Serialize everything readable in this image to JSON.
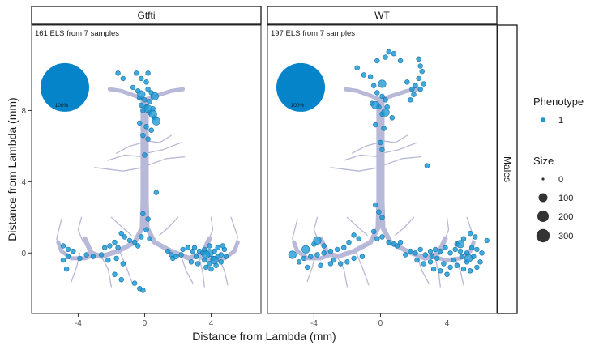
{
  "chart_data": {
    "type": "scatter",
    "xlabel": "Distance from Lambda (mm)",
    "ylabel": "Distance from Lambda (mm)",
    "xlim": [
      -6.8,
      7.0
    ],
    "ylim": [
      -3.4,
      12.8
    ],
    "x_ticks": [
      -4,
      0,
      4
    ],
    "x_tick_labels": [
      "-4",
      "0",
      "4"
    ],
    "y_ticks": [
      0,
      4,
      8
    ],
    "y_tick_labels": [
      "0",
      "4",
      "8"
    ],
    "row_strip": "Males",
    "panels": [
      {
        "strip": "Gtfti",
        "annotation": "161 ELS from 7 samples",
        "pie": {
          "center": [
            -4.8,
            9.3
          ],
          "percent_label": "100%",
          "value": 100
        },
        "points": [
          [
            -1.6,
            10.1
          ],
          [
            -1.3,
            9.8
          ],
          [
            -0.5,
            10.1
          ],
          [
            0.2,
            10.1
          ],
          [
            -0.2,
            9.8
          ],
          [
            0.1,
            9.6
          ],
          [
            -0.7,
            9.3
          ],
          [
            -0.4,
            9.1
          ],
          [
            0.2,
            9.2
          ],
          [
            0.4,
            9.0
          ],
          [
            -0.3,
            8.7
          ],
          [
            0.0,
            8.6
          ],
          [
            0.3,
            8.5
          ],
          [
            -0.2,
            8.3
          ],
          [
            0.1,
            8.2
          ],
          [
            0.5,
            8.1
          ],
          [
            -0.1,
            8.0
          ],
          [
            0.3,
            7.9
          ],
          [
            0.6,
            7.6
          ],
          [
            -0.3,
            7.3
          ],
          [
            0.1,
            7.1
          ],
          [
            0.4,
            6.9
          ],
          [
            -0.1,
            6.6
          ],
          [
            0.2,
            6.4
          ],
          [
            0.0,
            5.5
          ],
          [
            0.7,
            3.4
          ],
          [
            -0.1,
            2.2
          ],
          [
            0.2,
            1.9
          ],
          [
            0.1,
            1.3
          ],
          [
            -0.2,
            0.9
          ],
          [
            0.3,
            0.8
          ],
          [
            -1.4,
            1.1
          ],
          [
            -1.2,
            0.9
          ],
          [
            -0.9,
            0.7
          ],
          [
            -0.6,
            0.6
          ],
          [
            -0.4,
            0.4
          ],
          [
            -1.8,
            0.6
          ],
          [
            -2.1,
            0.4
          ],
          [
            -2.4,
            0.3
          ],
          [
            -1.6,
            0.3
          ],
          [
            -4.9,
            0.4
          ],
          [
            -4.6,
            0.2
          ],
          [
            -4.3,
            0.1
          ],
          [
            -4.6,
            -0.2
          ],
          [
            -4.9,
            -0.4
          ],
          [
            -4.7,
            -0.9
          ],
          [
            -3.9,
            -0.3
          ],
          [
            -3.5,
            -0.1
          ],
          [
            -3.1,
            -0.2
          ],
          [
            -2.6,
            -0.1
          ],
          [
            -2.2,
            -0.4
          ],
          [
            -1.7,
            -0.3
          ],
          [
            -1.3,
            -0.6
          ],
          [
            -1.8,
            -1.2
          ],
          [
            -1.4,
            -1.5
          ],
          [
            -0.6,
            -1.7
          ],
          [
            -0.3,
            -2.0
          ],
          [
            -0.1,
            -2.1
          ],
          [
            1.4,
            0.1
          ],
          [
            1.6,
            -0.1
          ],
          [
            1.7,
            -0.3
          ],
          [
            1.9,
            -0.2
          ],
          [
            2.3,
            0.2
          ],
          [
            2.6,
            0.3
          ],
          [
            2.9,
            0.1
          ],
          [
            3.1,
            -0.2
          ],
          [
            3.3,
            0.1
          ],
          [
            3.6,
            0.2
          ],
          [
            3.9,
            0.4
          ],
          [
            4.2,
            0.1
          ],
          [
            4.4,
            0.3
          ],
          [
            4.6,
            -0.1
          ],
          [
            4.8,
            0.2
          ],
          [
            3.6,
            -0.4
          ],
          [
            3.9,
            -0.6
          ],
          [
            4.3,
            -0.7
          ],
          [
            4.0,
            -0.9
          ],
          [
            3.7,
            -0.8
          ],
          [
            4.6,
            -0.5
          ],
          [
            4.9,
            -0.2
          ],
          [
            2.8,
            -0.5
          ],
          [
            3.2,
            -0.6
          ],
          [
            4.1,
            -0.3
          ],
          [
            4.4,
            -0.2
          ],
          [
            3.5,
            0.0
          ],
          [
            2.2,
            -0.1
          ],
          [
            4.7,
            0.4
          ],
          [
            3.0,
            0.3
          ]
        ],
        "big_points": [
          [
            0.6,
            8.8
          ],
          [
            0.2,
            8.1
          ],
          [
            0.5,
            7.8
          ],
          [
            0.7,
            7.4
          ],
          [
            -0.2,
            8.9
          ],
          [
            3.9,
            0.0
          ],
          [
            4.2,
            -0.4
          ],
          [
            3.7,
            -0.1
          ]
        ]
      },
      {
        "strip": "WT",
        "annotation": "197 ELS from 7 samples",
        "pie": {
          "center": [
            -4.8,
            9.3
          ],
          "percent_label": "100%",
          "value": 100
        },
        "points": [
          [
            0.5,
            11.3
          ],
          [
            0.8,
            11.2
          ],
          [
            0.3,
            11.0
          ],
          [
            1.2,
            10.8
          ],
          [
            -0.2,
            10.8
          ],
          [
            2.3,
            10.9
          ],
          [
            2.4,
            10.5
          ],
          [
            2.5,
            10.2
          ],
          [
            2.3,
            9.8
          ],
          [
            2.1,
            9.4
          ],
          [
            2.4,
            9.2
          ],
          [
            2.6,
            9.5
          ],
          [
            1.6,
            9.6
          ],
          [
            1.9,
            9.2
          ],
          [
            2.0,
            8.9
          ],
          [
            1.8,
            8.6
          ],
          [
            -1.4,
            10.4
          ],
          [
            -1.0,
            10.0
          ],
          [
            -0.6,
            9.9
          ],
          [
            -0.4,
            9.4
          ],
          [
            -0.2,
            9.0
          ],
          [
            0.1,
            8.8
          ],
          [
            0.3,
            8.6
          ],
          [
            -0.5,
            8.4
          ],
          [
            -0.1,
            8.2
          ],
          [
            0.4,
            8.2
          ],
          [
            0.1,
            7.8
          ],
          [
            0.7,
            7.6
          ],
          [
            -0.3,
            7.2
          ],
          [
            0.2,
            7.0
          ],
          [
            0.0,
            6.2
          ],
          [
            0.1,
            5.8
          ],
          [
            2.8,
            4.9
          ],
          [
            -0.3,
            2.7
          ],
          [
            -0.1,
            2.3
          ],
          [
            0.1,
            2.0
          ],
          [
            -0.4,
            1.2
          ],
          [
            -0.2,
            0.8
          ],
          [
            0.1,
            0.9
          ],
          [
            0.5,
            0.6
          ],
          [
            0.8,
            0.5
          ],
          [
            1.2,
            0.6
          ],
          [
            -1.6,
            1.0
          ],
          [
            -1.3,
            0.8
          ],
          [
            -1.9,
            0.6
          ],
          [
            -2.2,
            0.3
          ],
          [
            -2.6,
            0.2
          ],
          [
            -3.0,
            0.1
          ],
          [
            -3.4,
            0.0
          ],
          [
            -3.8,
            -0.1
          ],
          [
            -4.2,
            -0.2
          ],
          [
            -4.6,
            -0.3
          ],
          [
            -4.9,
            -0.5
          ],
          [
            -4.0,
            0.5
          ],
          [
            -3.4,
            0.4
          ],
          [
            -2.8,
            -0.4
          ],
          [
            -2.4,
            -0.6
          ],
          [
            -2.0,
            -0.5
          ],
          [
            -1.6,
            -0.3
          ],
          [
            -1.1,
            -0.2
          ],
          [
            -4.4,
            -0.8
          ],
          [
            -3.6,
            -0.7
          ],
          [
            -3.0,
            -0.6
          ],
          [
            1.5,
            -0.1
          ],
          [
            1.8,
            0.1
          ],
          [
            2.1,
            0.0
          ],
          [
            2.4,
            0.2
          ],
          [
            2.7,
            -0.1
          ],
          [
            3.0,
            0.1
          ],
          [
            3.3,
            0.2
          ],
          [
            3.6,
            0.1
          ],
          [
            3.9,
            0.3
          ],
          [
            4.2,
            0.0
          ],
          [
            4.5,
            0.2
          ],
          [
            4.8,
            0.1
          ],
          [
            5.2,
            0.0
          ],
          [
            5.5,
            0.3
          ],
          [
            5.8,
            0.2
          ],
          [
            6.1,
            0.0
          ],
          [
            6.4,
            0.7
          ],
          [
            5.4,
            1.1
          ],
          [
            5.7,
            0.9
          ],
          [
            5.0,
            0.8
          ],
          [
            4.6,
            0.5
          ],
          [
            2.2,
            -0.4
          ],
          [
            2.6,
            -0.6
          ],
          [
            3.0,
            -0.5
          ],
          [
            3.4,
            -0.3
          ],
          [
            3.8,
            -0.6
          ],
          [
            4.2,
            -0.8
          ],
          [
            4.6,
            -0.7
          ],
          [
            5.0,
            -0.9
          ],
          [
            5.4,
            -1.0
          ],
          [
            5.8,
            -0.8
          ],
          [
            6.0,
            -0.5
          ],
          [
            4.0,
            -1.2
          ],
          [
            3.6,
            -1.0
          ],
          [
            3.2,
            -0.9
          ],
          [
            4.4,
            -0.4
          ],
          [
            5.2,
            -0.5
          ],
          [
            5.6,
            -0.2
          ],
          [
            1.0,
            0.4
          ],
          [
            3.1,
            -0.2
          ],
          [
            4.9,
            -0.2
          ]
        ],
        "big_points": [
          [
            0.1,
            9.5
          ],
          [
            -0.3,
            8.3
          ],
          [
            0.3,
            7.9
          ],
          [
            -5.3,
            -0.1
          ],
          [
            -3.8,
            0.7
          ],
          [
            -4.5,
            0.2
          ],
          [
            4.8,
            0.5
          ],
          [
            5.3,
            -0.3
          ]
        ]
      }
    ],
    "legend": {
      "phenotype_title": "Phenotype",
      "phenotype_items": [
        "1"
      ],
      "size_title": "Size",
      "size_items": [
        {
          "label": "0",
          "value": 0
        },
        {
          "label": "100",
          "value": 100
        },
        {
          "label": "200",
          "value": 200
        },
        {
          "label": "300",
          "value": 300
        }
      ]
    },
    "colors": {
      "point": "#1f9bd6",
      "point_stroke": "#1672a6",
      "pie": "#0584c9",
      "brain": "#b8b8d8"
    }
  }
}
